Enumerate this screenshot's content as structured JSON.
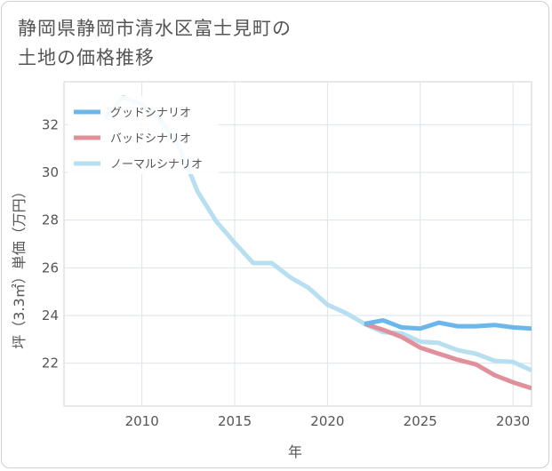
{
  "title": {
    "line1": "静岡県静岡市清水区富士見町の",
    "line2": "土地の価格推移"
  },
  "chart_data": {
    "type": "line",
    "xlabel": "年",
    "ylabel": "坪（3.3㎡）単価（万円）",
    "xlim": [
      2005.8,
      2031
    ],
    "ylim": [
      20.2,
      33.8
    ],
    "xticks": [
      2010,
      2015,
      2020,
      2025,
      2030
    ],
    "yticks": [
      22,
      24,
      26,
      28,
      30,
      32
    ],
    "grid": true,
    "legend_position": "top-left",
    "series": [
      {
        "name": "グッドシナリオ",
        "color": "#6bb7ec",
        "x": [
          2022,
          2023,
          2024,
          2025,
          2026,
          2027,
          2028,
          2029,
          2030,
          2031
        ],
        "values": [
          23.65,
          23.8,
          23.5,
          23.45,
          23.7,
          23.55,
          23.55,
          23.6,
          23.5,
          23.45
        ]
      },
      {
        "name": "バッドシナリオ",
        "color": "#e0909a",
        "x": [
          2022,
          2023,
          2024,
          2025,
          2026,
          2027,
          2028,
          2029,
          2030,
          2031
        ],
        "values": [
          23.65,
          23.4,
          23.1,
          22.65,
          22.4,
          22.15,
          21.95,
          21.5,
          21.2,
          20.95
        ]
      },
      {
        "name": "ノーマルシナリオ",
        "color": "#b7dff0",
        "x": [
          2008,
          2009,
          2010,
          2011,
          2012,
          2013,
          2014,
          2015,
          2016,
          2017,
          2018,
          2019,
          2020,
          2021,
          2022,
          2023,
          2024,
          2025,
          2026,
          2027,
          2028,
          2029,
          2030,
          2031
        ],
        "values": [
          32.3,
          33.15,
          32.85,
          32.2,
          31.1,
          29.2,
          27.95,
          27.05,
          26.2,
          26.2,
          25.6,
          25.15,
          24.45,
          24.1,
          23.65,
          23.3,
          23.25,
          22.9,
          22.85,
          22.55,
          22.4,
          22.1,
          22.05,
          21.7
        ]
      }
    ]
  }
}
